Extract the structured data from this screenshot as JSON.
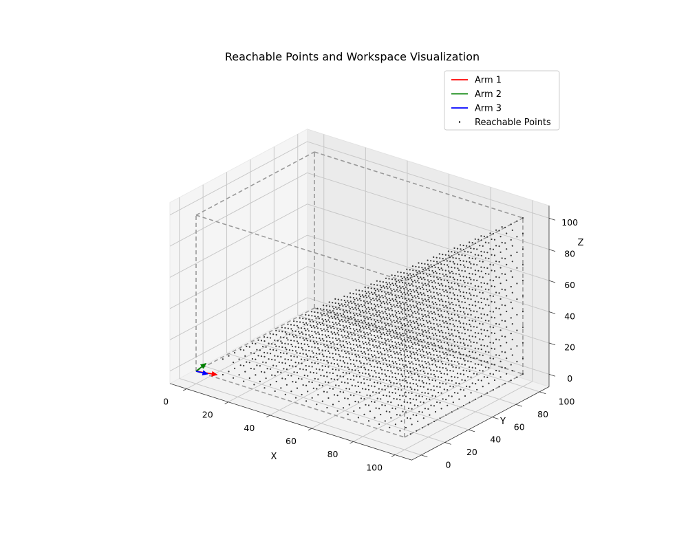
{
  "chart_data": {
    "type": "scatter3d",
    "title": "Reachable Points and Workspace Visualization",
    "xlabel": "X",
    "ylabel": "Y",
    "zlabel": "Z",
    "xlim": [
      0,
      100
    ],
    "ylim": [
      0,
      100
    ],
    "zlim": [
      0,
      100
    ],
    "xticks": [
      0,
      20,
      40,
      60,
      80,
      100
    ],
    "yticks": [
      0,
      20,
      40,
      60,
      80,
      100
    ],
    "zticks": [
      0,
      20,
      40,
      60,
      80,
      100
    ],
    "grid": true,
    "legend_position": "top-right",
    "legend": [
      {
        "label": "Arm 1",
        "kind": "line",
        "color": "#ff0000"
      },
      {
        "label": "Arm 2",
        "kind": "line",
        "color": "#008000"
      },
      {
        "label": "Arm 3",
        "kind": "line",
        "color": "#0000ff"
      },
      {
        "label": "Reachable Points",
        "kind": "marker",
        "color": "#000000"
      }
    ],
    "workspace_box": {
      "min": [
        0,
        0,
        0
      ],
      "max": [
        100,
        100,
        100
      ],
      "color": "#999999"
    },
    "arms": [
      {
        "name": "Arm 1",
        "color": "#ff0000",
        "start": [
          0,
          0,
          0
        ],
        "end": [
          10,
          0,
          2
        ]
      },
      {
        "name": "Arm 2",
        "color": "#008000",
        "start": [
          0,
          0,
          0
        ],
        "end": [
          3,
          3,
          5
        ]
      },
      {
        "name": "Arm 3",
        "color": "#0000ff",
        "start": [
          0,
          0,
          0
        ],
        "end": [
          5,
          1,
          0
        ]
      }
    ],
    "reachable_points": {
      "description_of_sampling": "grid",
      "x_range": [
        10,
        100
      ],
      "y_range": [
        5,
        100
      ],
      "z_values": [
        0,
        10,
        20,
        30,
        40,
        50,
        60,
        70,
        80,
        90,
        100
      ],
      "step": 5,
      "condition": "z <= x"
    }
  }
}
